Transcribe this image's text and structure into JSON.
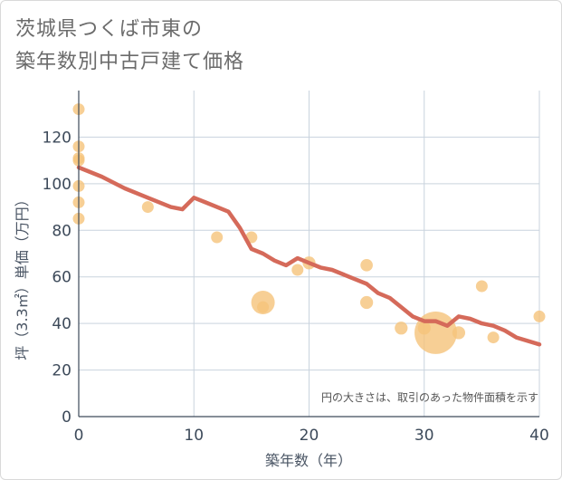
{
  "title_line1": "茨城県つくば市東の",
  "title_line2": "築年数別中古戸建て価格",
  "colors": {
    "bubble": "#f5c37a",
    "trend": "#d56a5a",
    "grid": "#c9d3de",
    "axis": "#3d4a5a"
  },
  "chart_data": {
    "type": "scatter",
    "xlabel": "築年数（年）",
    "ylabel": "坪（3.3㎡）単価（万円）",
    "xlim": [
      0,
      40
    ],
    "ylim": [
      0,
      140
    ],
    "xticks": [
      0,
      10,
      20,
      30,
      40
    ],
    "yticks": [
      0,
      20,
      40,
      60,
      80,
      100,
      120
    ],
    "grid": true,
    "note": "円の大きさは、取引のあった物件面積を示す",
    "points": [
      {
        "x": 0,
        "y": 132,
        "size": 1
      },
      {
        "x": 0,
        "y": 116,
        "size": 1
      },
      {
        "x": 0,
        "y": 111,
        "size": 1
      },
      {
        "x": 0,
        "y": 110,
        "size": 1
      },
      {
        "x": 0,
        "y": 99,
        "size": 1
      },
      {
        "x": 0,
        "y": 92,
        "size": 1
      },
      {
        "x": 0,
        "y": 85,
        "size": 1
      },
      {
        "x": 6,
        "y": 90,
        "size": 1
      },
      {
        "x": 12,
        "y": 77,
        "size": 1
      },
      {
        "x": 15,
        "y": 77,
        "size": 1
      },
      {
        "x": 16,
        "y": 49,
        "size": 4
      },
      {
        "x": 16,
        "y": 47,
        "size": 1
      },
      {
        "x": 19,
        "y": 63,
        "size": 1
      },
      {
        "x": 20,
        "y": 66,
        "size": 1.2
      },
      {
        "x": 25,
        "y": 65,
        "size": 1.1
      },
      {
        "x": 25,
        "y": 49,
        "size": 1.2
      },
      {
        "x": 28,
        "y": 38,
        "size": 1.2
      },
      {
        "x": 30,
        "y": 38,
        "size": 1.2
      },
      {
        "x": 31,
        "y": 36,
        "size": 13
      },
      {
        "x": 33,
        "y": 36,
        "size": 1.2
      },
      {
        "x": 35,
        "y": 56,
        "size": 1
      },
      {
        "x": 36,
        "y": 34,
        "size": 1
      },
      {
        "x": 40,
        "y": 43,
        "size": 1
      }
    ],
    "trend": {
      "x": [
        0,
        2,
        4,
        6,
        8,
        9,
        10,
        11,
        13,
        14,
        15,
        16,
        17,
        18,
        19,
        20,
        21,
        22,
        23,
        24,
        25,
        26,
        27,
        28,
        29,
        30,
        31,
        32,
        33,
        34,
        35,
        36,
        37,
        38,
        40
      ],
      "y": [
        107,
        103,
        98,
        94,
        90,
        89,
        94,
        92,
        88,
        81,
        72,
        70,
        67,
        65,
        68,
        66,
        64,
        63,
        61,
        59,
        57,
        53,
        51,
        47,
        43,
        41,
        41,
        39,
        43,
        42,
        40,
        39,
        37,
        34,
        31
      ]
    }
  }
}
